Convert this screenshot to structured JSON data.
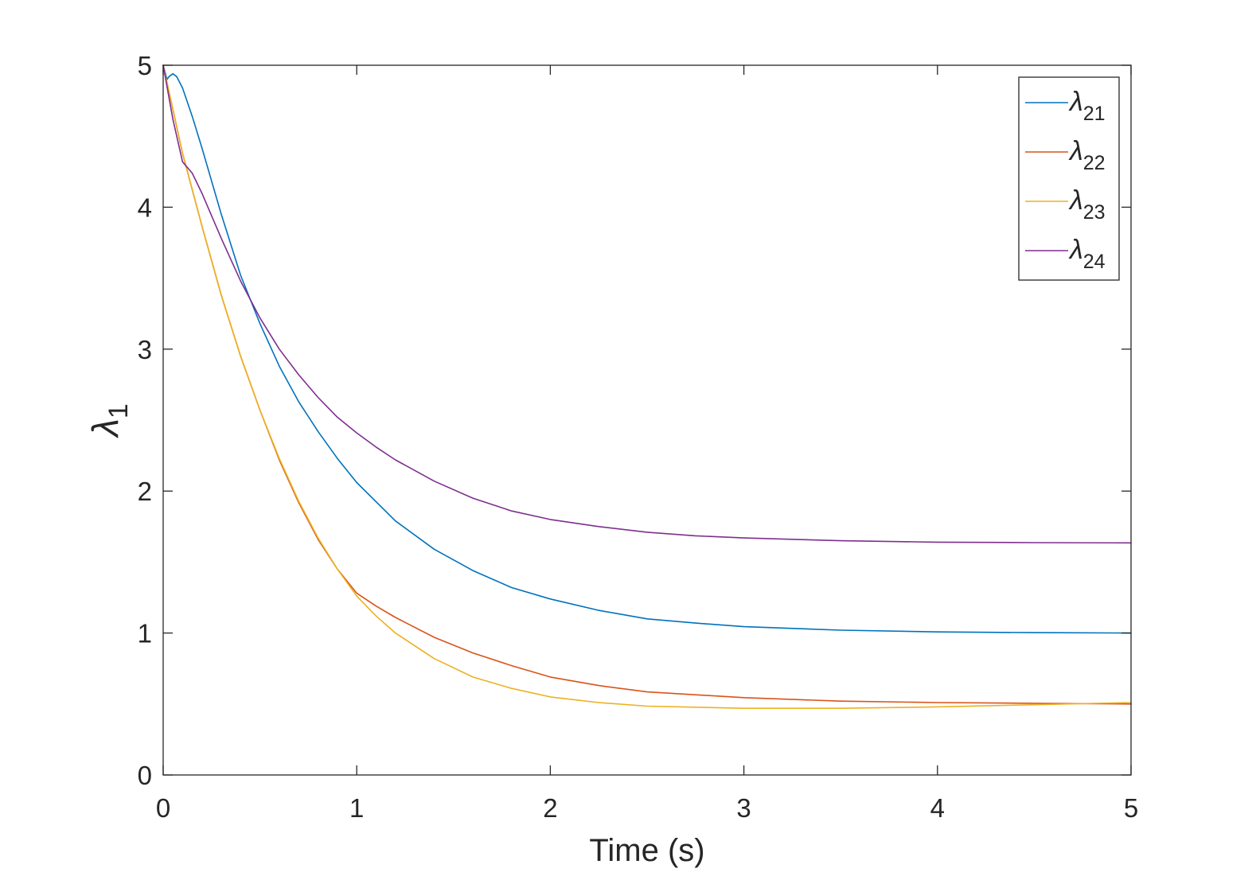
{
  "chart_data": {
    "type": "line",
    "title": "",
    "xlabel": "Time (s)",
    "ylabel": {
      "symbol": "λ",
      "subscript": "1"
    },
    "xlim": [
      0,
      5
    ],
    "ylim": [
      0,
      5
    ],
    "xticks": [
      "0",
      "1",
      "2",
      "3",
      "4",
      "5"
    ],
    "yticks": [
      "0",
      "1",
      "2",
      "3",
      "4",
      "5"
    ],
    "grid": false,
    "legend_position": "top-right",
    "series": [
      {
        "name": "λ21",
        "legend_symbol": "λ",
        "legend_subscript": "21",
        "color": "#0072BD",
        "points": [
          [
            0,
            5.0
          ],
          [
            0.02,
            4.9
          ],
          [
            0.03,
            4.92
          ],
          [
            0.05,
            4.94
          ],
          [
            0.07,
            4.92
          ],
          [
            0.1,
            4.84
          ],
          [
            0.15,
            4.64
          ],
          [
            0.2,
            4.42
          ],
          [
            0.3,
            3.95
          ],
          [
            0.4,
            3.52
          ],
          [
            0.5,
            3.18
          ],
          [
            0.6,
            2.88
          ],
          [
            0.7,
            2.63
          ],
          [
            0.8,
            2.42
          ],
          [
            0.9,
            2.23
          ],
          [
            1.0,
            2.06
          ],
          [
            1.2,
            1.79
          ],
          [
            1.4,
            1.59
          ],
          [
            1.6,
            1.44
          ],
          [
            1.8,
            1.32
          ],
          [
            2.0,
            1.24
          ],
          [
            2.25,
            1.16
          ],
          [
            2.5,
            1.1
          ],
          [
            2.75,
            1.07
          ],
          [
            3.0,
            1.045
          ],
          [
            3.5,
            1.02
          ],
          [
            4.0,
            1.008
          ],
          [
            4.5,
            1.003
          ],
          [
            5.0,
            1.0
          ]
        ]
      },
      {
        "name": "λ22",
        "legend_symbol": "λ",
        "legend_subscript": "22",
        "color": "#D95319",
        "points": [
          [
            0,
            5.0
          ],
          [
            0.1,
            4.38
          ],
          [
            0.2,
            3.87
          ],
          [
            0.3,
            3.38
          ],
          [
            0.4,
            2.95
          ],
          [
            0.5,
            2.57
          ],
          [
            0.6,
            2.22
          ],
          [
            0.7,
            1.92
          ],
          [
            0.8,
            1.66
          ],
          [
            0.9,
            1.45
          ],
          [
            1.0,
            1.28
          ],
          [
            1.1,
            1.19
          ],
          [
            1.2,
            1.11
          ],
          [
            1.4,
            0.97
          ],
          [
            1.6,
            0.86
          ],
          [
            1.8,
            0.77
          ],
          [
            2.0,
            0.69
          ],
          [
            2.25,
            0.63
          ],
          [
            2.5,
            0.585
          ],
          [
            3.0,
            0.545
          ],
          [
            3.5,
            0.52
          ],
          [
            4.0,
            0.51
          ],
          [
            4.5,
            0.505
          ],
          [
            5.0,
            0.5
          ]
        ]
      },
      {
        "name": "λ23",
        "legend_symbol": "λ",
        "legend_subscript": "23",
        "color": "#EDB120",
        "points": [
          [
            0,
            5.0
          ],
          [
            0.1,
            4.38
          ],
          [
            0.2,
            3.87
          ],
          [
            0.3,
            3.38
          ],
          [
            0.4,
            2.95
          ],
          [
            0.5,
            2.57
          ],
          [
            0.6,
            2.23
          ],
          [
            0.7,
            1.93
          ],
          [
            0.8,
            1.67
          ],
          [
            0.9,
            1.45
          ],
          [
            1.0,
            1.26
          ],
          [
            1.1,
            1.12
          ],
          [
            1.2,
            1.0
          ],
          [
            1.4,
            0.82
          ],
          [
            1.6,
            0.69
          ],
          [
            1.8,
            0.61
          ],
          [
            2.0,
            0.55
          ],
          [
            2.25,
            0.51
          ],
          [
            2.5,
            0.485
          ],
          [
            3.0,
            0.47
          ],
          [
            3.5,
            0.47
          ],
          [
            4.0,
            0.48
          ],
          [
            4.5,
            0.495
          ],
          [
            5.0,
            0.51
          ]
        ]
      },
      {
        "name": "λ24",
        "legend_symbol": "λ",
        "legend_subscript": "24",
        "color": "#7E2F8E",
        "points": [
          [
            0,
            5.0
          ],
          [
            0.05,
            4.62
          ],
          [
            0.1,
            4.32
          ],
          [
            0.15,
            4.24
          ],
          [
            0.2,
            4.1
          ],
          [
            0.3,
            3.78
          ],
          [
            0.4,
            3.48
          ],
          [
            0.5,
            3.22
          ],
          [
            0.6,
            3.0
          ],
          [
            0.7,
            2.82
          ],
          [
            0.8,
            2.66
          ],
          [
            0.9,
            2.52
          ],
          [
            1.0,
            2.41
          ],
          [
            1.1,
            2.31
          ],
          [
            1.2,
            2.22
          ],
          [
            1.4,
            2.07
          ],
          [
            1.6,
            1.95
          ],
          [
            1.8,
            1.86
          ],
          [
            2.0,
            1.8
          ],
          [
            2.25,
            1.75
          ],
          [
            2.5,
            1.71
          ],
          [
            2.75,
            1.685
          ],
          [
            3.0,
            1.67
          ],
          [
            3.5,
            1.65
          ],
          [
            4.0,
            1.64
          ],
          [
            4.5,
            1.637
          ],
          [
            5.0,
            1.635
          ]
        ]
      }
    ]
  }
}
